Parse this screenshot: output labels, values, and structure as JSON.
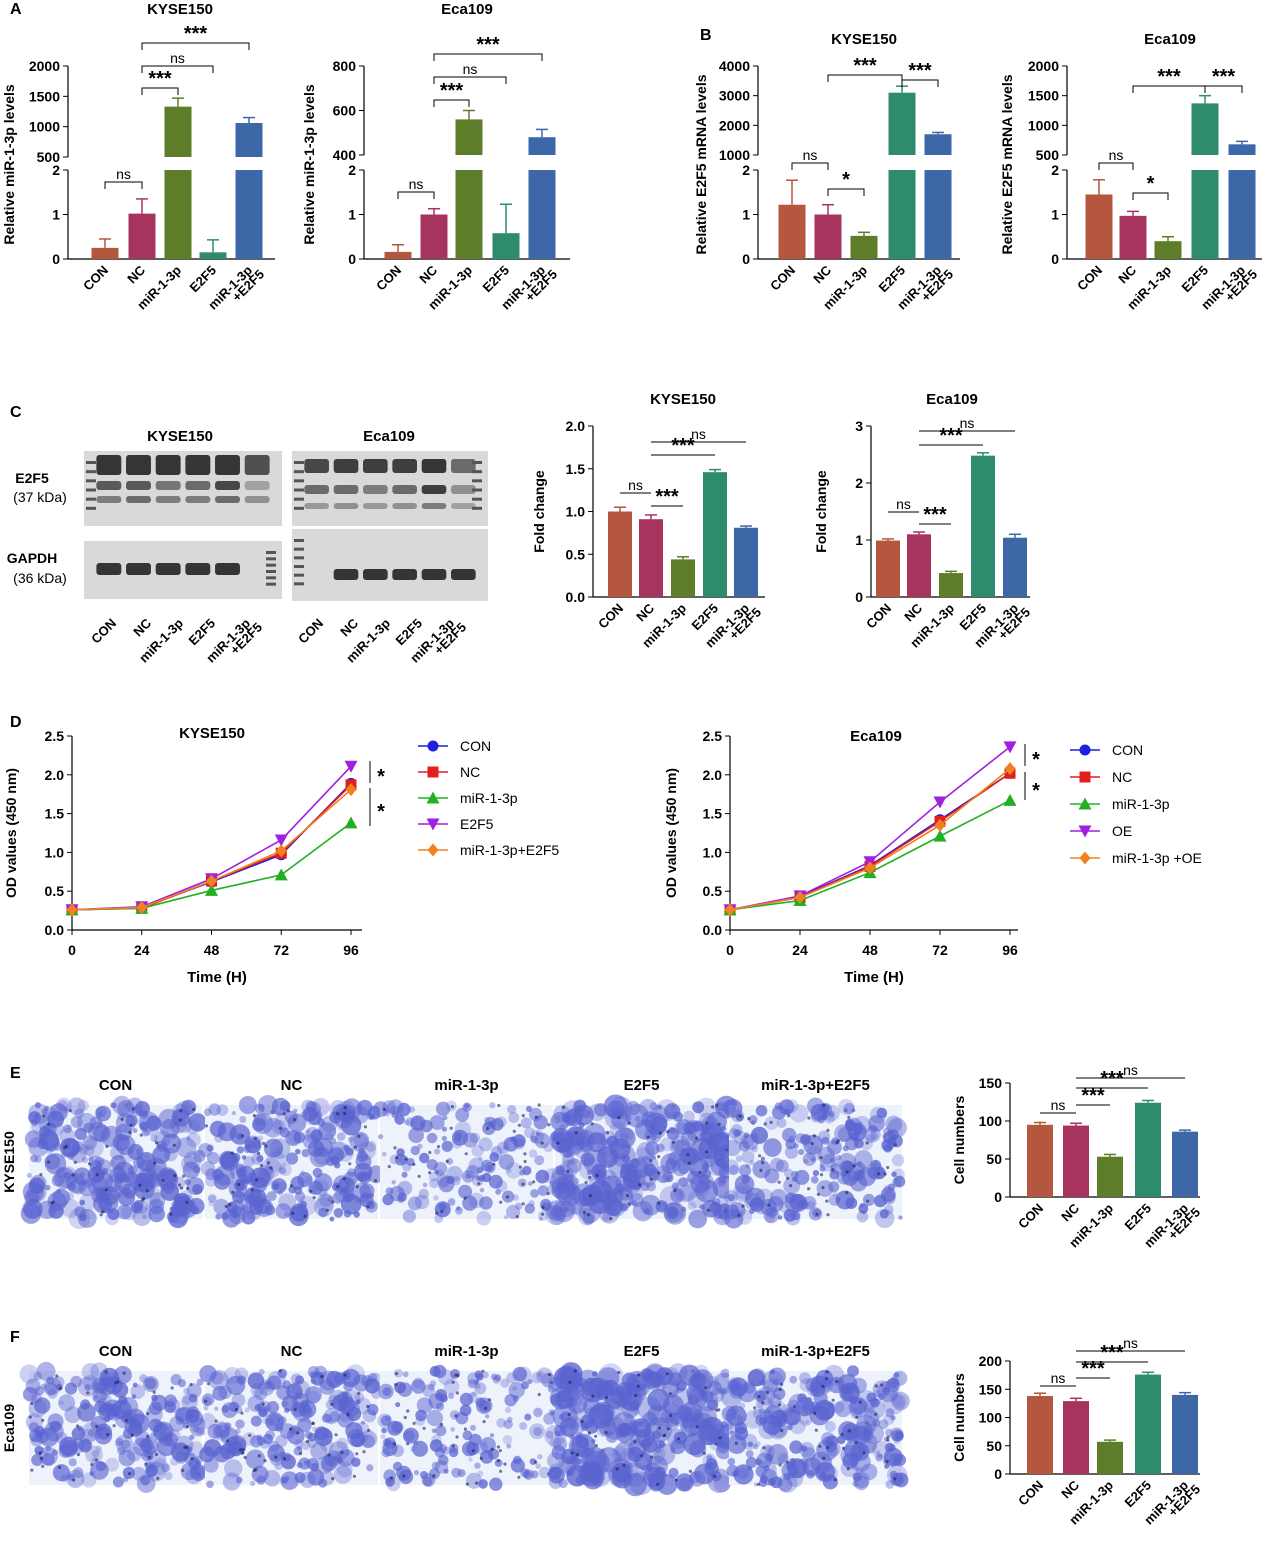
{
  "panel_letters": [
    "A",
    "B",
    "C",
    "D",
    "E",
    "F"
  ],
  "colors": {
    "CON": "#B5573F",
    "NC": "#A6345E",
    "miR": "#5E7D2A",
    "E2F5": "#2E8B6E",
    "combo": "#3E67A8",
    "stain": "#5A64D0",
    "blot": "#3a3a3a"
  },
  "group_labels": [
    "CON",
    "NC",
    "miR-1-3p",
    "E2F5",
    "miR-1-3p",
    "+E2F5"
  ],
  "western": {
    "titles": [
      "KYSE150",
      "Eca109"
    ],
    "band_labels": [
      "E2F5",
      "(37 kDa)",
      "GAPDH",
      "(36 kDa)"
    ]
  },
  "chart_data": [
    {
      "id": "A1",
      "type": "bar",
      "title": "KYSE150",
      "ylabel": "Relative miR-1-3p levels",
      "categories": [
        "CON",
        "NC",
        "miR-1-3p",
        "E2F5",
        "miR-1-3p +E2F5"
      ],
      "values": [
        0.25,
        1.02,
        1330,
        0.15,
        1060
      ],
      "errors": [
        0.2,
        0.33,
        140,
        0.28,
        90
      ],
      "axis_break": true,
      "lower_ticks": [
        "0",
        "1",
        "2"
      ],
      "upper_ticks": [
        "500",
        "1000",
        "1500",
        "2000"
      ],
      "significance": [
        "ns",
        "***",
        "ns",
        "***"
      ]
    },
    {
      "id": "A2",
      "type": "bar",
      "title": "Eca109",
      "ylabel": "Relative miR-1-3p levels",
      "categories": [
        "CON",
        "NC",
        "miR-1-3p",
        "E2F5",
        "miR-1-3p +E2F5"
      ],
      "values": [
        0.16,
        1.0,
        560,
        0.58,
        480
      ],
      "errors": [
        0.16,
        0.13,
        40,
        0.65,
        35
      ],
      "axis_break": true,
      "lower_ticks": [
        "0",
        "1",
        "2"
      ],
      "upper_ticks": [
        "400",
        "600",
        "800"
      ],
      "significance": [
        "ns",
        "***",
        "ns",
        "***"
      ]
    },
    {
      "id": "B1",
      "type": "bar",
      "title": "KYSE150",
      "ylabel": "Relative E2F5 mRNA levels",
      "categories": [
        "CON",
        "NC",
        "miR-1-3p",
        "E2F5",
        "miR-1-3p +E2F5"
      ],
      "values": [
        1.22,
        1.0,
        0.52,
        3100,
        1700
      ],
      "errors": [
        0.55,
        0.22,
        0.08,
        220,
        60
      ],
      "axis_break": true,
      "lower_ticks": [
        "0",
        "1",
        "2"
      ],
      "upper_ticks": [
        "1000",
        "2000",
        "3000",
        "4000"
      ],
      "significance": [
        "ns",
        "*",
        "***",
        "***"
      ]
    },
    {
      "id": "B2",
      "type": "bar",
      "title": "Eca109",
      "ylabel": "Relative E2F5 mRNA levels",
      "categories": [
        "CON",
        "NC",
        "miR-1-3p",
        "E2F5",
        "miR-1-3p +E2F5"
      ],
      "values": [
        1.45,
        0.97,
        0.4,
        1370,
        680
      ],
      "errors": [
        0.33,
        0.1,
        0.1,
        130,
        50
      ],
      "axis_break": true,
      "lower_ticks": [
        "0",
        "1",
        "2"
      ],
      "upper_ticks": [
        "500",
        "1000",
        "1500",
        "2000"
      ],
      "significance": [
        "ns",
        "*",
        "***",
        "***"
      ]
    },
    {
      "id": "C1",
      "type": "bar",
      "title": "KYSE150",
      "ylabel": "Fold change",
      "categories": [
        "CON",
        "NC",
        "miR-1-3p",
        "E2F5",
        "miR-1-3p +E2F5"
      ],
      "values": [
        1.0,
        0.91,
        0.44,
        1.46,
        0.81
      ],
      "errors": [
        0.05,
        0.05,
        0.03,
        0.03,
        0.02
      ],
      "ylim": [
        0,
        2.0
      ],
      "ticks": [
        "0.0",
        "0.5",
        "1.0",
        "1.5",
        "2.0"
      ],
      "significance": [
        "ns",
        "***",
        "***",
        "ns"
      ]
    },
    {
      "id": "C2",
      "type": "bar",
      "title": "Eca109",
      "ylabel": "Fold change",
      "categories": [
        "CON",
        "NC",
        "miR-1-3p",
        "E2F5",
        "miR-1-3p +E2F5"
      ],
      "values": [
        0.99,
        1.1,
        0.42,
        2.48,
        1.04
      ],
      "errors": [
        0.03,
        0.04,
        0.03,
        0.05,
        0.06
      ],
      "ylim": [
        0,
        3
      ],
      "ticks": [
        "0",
        "1",
        "2",
        "3"
      ],
      "significance": [
        "ns",
        "***",
        "***",
        "ns"
      ]
    },
    {
      "id": "D1",
      "type": "line",
      "title": "KYSE150",
      "xlabel": "Time (H)",
      "ylabel": "OD values (450 nm)",
      "x": [
        0,
        24,
        48,
        72,
        96
      ],
      "xticks": [
        "0",
        "24",
        "48",
        "72",
        "96"
      ],
      "yticks": [
        "0.0",
        "0.5",
        "1.0",
        "1.5",
        "2.0",
        "2.5"
      ],
      "ylim": [
        0,
        2.5
      ],
      "series": [
        {
          "name": "CON",
          "values": [
            0.26,
            0.29,
            0.62,
            0.97,
            1.89
          ],
          "color": "#1F1FE0",
          "marker": "circle"
        },
        {
          "name": "NC",
          "values": [
            0.26,
            0.28,
            0.63,
            0.99,
            1.87
          ],
          "color": "#E01F1F",
          "marker": "square"
        },
        {
          "name": "miR-1-3p",
          "values": [
            0.26,
            0.28,
            0.51,
            0.71,
            1.38
          ],
          "color": "#22B022",
          "marker": "triangle"
        },
        {
          "name": "E2F5",
          "values": [
            0.26,
            0.3,
            0.66,
            1.16,
            2.11
          ],
          "color": "#A020E0",
          "marker": "triangle-down"
        },
        {
          "name": "miR-1-3p+E2F5",
          "values": [
            0.26,
            0.29,
            0.63,
            1.02,
            1.81
          ],
          "color": "#F08020",
          "marker": "diamond"
        }
      ],
      "significance": [
        "*",
        "*"
      ]
    },
    {
      "id": "D2",
      "type": "line",
      "title": "Eca109",
      "xlabel": "Time (H)",
      "ylabel": "OD values (450 nm)",
      "x": [
        0,
        24,
        48,
        72,
        96
      ],
      "xticks": [
        "0",
        "24",
        "48",
        "72",
        "96"
      ],
      "yticks": [
        "0.0",
        "0.5",
        "1.0",
        "1.5",
        "2.0",
        "2.5"
      ],
      "ylim": [
        0,
        2.5
      ],
      "series": [
        {
          "name": "CON",
          "values": [
            0.26,
            0.43,
            0.83,
            1.42,
            2.02
          ],
          "color": "#1F1FE0",
          "marker": "circle"
        },
        {
          "name": "NC",
          "values": [
            0.26,
            0.42,
            0.82,
            1.4,
            2.02
          ],
          "color": "#E01F1F",
          "marker": "square"
        },
        {
          "name": "miR-1-3p",
          "values": [
            0.26,
            0.38,
            0.74,
            1.21,
            1.67
          ],
          "color": "#22B022",
          "marker": "triangle"
        },
        {
          "name": "OE",
          "values": [
            0.26,
            0.44,
            0.88,
            1.65,
            2.36
          ],
          "color": "#A020E0",
          "marker": "triangle-down"
        },
        {
          "name": "miR-1-3p +OE",
          "values": [
            0.26,
            0.42,
            0.8,
            1.35,
            2.08
          ],
          "color": "#F08020",
          "marker": "diamond"
        }
      ],
      "significance": [
        "*",
        "*"
      ]
    },
    {
      "id": "E",
      "type": "bar",
      "title": "",
      "ylabel": "Cell numbers",
      "categories": [
        "CON",
        "NC",
        "miR-1-3p",
        "E2F5",
        "miR-1-3p +E2F5"
      ],
      "values": [
        95,
        94,
        53,
        124,
        86
      ],
      "errors": [
        3,
        3,
        3,
        3,
        2
      ],
      "ylim": [
        0,
        150
      ],
      "ticks": [
        "0",
        "50",
        "100",
        "150"
      ],
      "significance": [
        "ns",
        "***",
        "***",
        "ns"
      ]
    },
    {
      "id": "F",
      "type": "bar",
      "title": "",
      "ylabel": "Cell numbers",
      "categories": [
        "CON",
        "NC",
        "miR-1-3p",
        "E2F5",
        "miR-1-3p +E2F5"
      ],
      "values": [
        138,
        129,
        57,
        176,
        140
      ],
      "errors": [
        5,
        5,
        3,
        4,
        4
      ],
      "ylim": [
        0,
        200
      ],
      "ticks": [
        "0",
        "50",
        "100",
        "150",
        "200"
      ],
      "significance": [
        "ns",
        "***",
        "***",
        "ns"
      ]
    }
  ],
  "transwell": {
    "E": {
      "row_label": "KYSE150",
      "column_labels": [
        "CON",
        "NC",
        "miR-1-3p",
        "E2F5",
        "miR-1-3p+E2F5"
      ],
      "densities": [
        0.55,
        0.5,
        0.25,
        0.7,
        0.45
      ]
    },
    "F": {
      "row_label": "Eca109",
      "column_labels": [
        "CON",
        "NC",
        "miR-1-3p",
        "E2F5",
        "miR-1-3p+E2F5"
      ],
      "densities": [
        0.45,
        0.45,
        0.25,
        0.75,
        0.55
      ]
    }
  }
}
